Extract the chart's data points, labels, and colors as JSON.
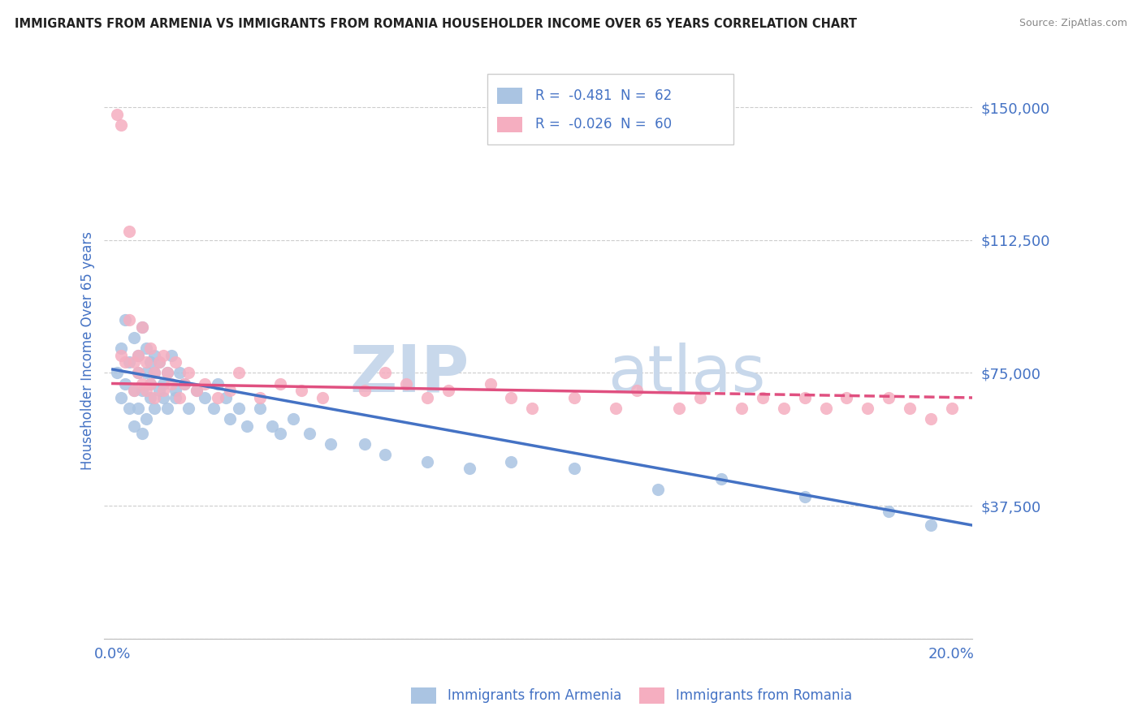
{
  "title": "IMMIGRANTS FROM ARMENIA VS IMMIGRANTS FROM ROMANIA HOUSEHOLDER INCOME OVER 65 YEARS CORRELATION CHART",
  "source": "Source: ZipAtlas.com",
  "ylabel": "Householder Income Over 65 years",
  "ylim": [
    0,
    162500
  ],
  "xlim": [
    -0.002,
    0.205
  ],
  "yticks": [
    0,
    37500,
    75000,
    112500,
    150000
  ],
  "ytick_labels": [
    "",
    "$37,500",
    "$75,000",
    "$112,500",
    "$150,000"
  ],
  "xticks": [
    0.0,
    0.05,
    0.1,
    0.15,
    0.2
  ],
  "xtick_labels": [
    "0.0%",
    "",
    "",
    "",
    "20.0%"
  ],
  "legend_R_armenia": "-0.481",
  "legend_N_armenia": "62",
  "legend_R_romania": "-0.026",
  "legend_N_romania": "60",
  "color_armenia": "#aac4e2",
  "color_romania": "#f5aec0",
  "color_trend_armenia": "#4472c4",
  "color_trend_romania": "#e05080",
  "watermark_zip": "ZIP",
  "watermark_atlas": "atlas",
  "watermark_color": "#c8d8eb",
  "title_color": "#222222",
  "axis_label_color": "#4472c4",
  "legend_text_color": "#4472c4",
  "armenia_x": [
    0.001,
    0.002,
    0.002,
    0.003,
    0.003,
    0.004,
    0.004,
    0.005,
    0.005,
    0.005,
    0.006,
    0.006,
    0.006,
    0.007,
    0.007,
    0.007,
    0.008,
    0.008,
    0.008,
    0.009,
    0.009,
    0.009,
    0.01,
    0.01,
    0.01,
    0.011,
    0.011,
    0.012,
    0.012,
    0.013,
    0.013,
    0.014,
    0.015,
    0.015,
    0.016,
    0.017,
    0.018,
    0.02,
    0.022,
    0.024,
    0.025,
    0.027,
    0.028,
    0.03,
    0.032,
    0.035,
    0.038,
    0.04,
    0.043,
    0.047,
    0.052,
    0.06,
    0.065,
    0.075,
    0.085,
    0.095,
    0.11,
    0.13,
    0.145,
    0.165,
    0.185,
    0.195
  ],
  "armenia_y": [
    75000,
    82000,
    68000,
    90000,
    72000,
    78000,
    65000,
    85000,
    70000,
    60000,
    80000,
    75000,
    65000,
    88000,
    70000,
    58000,
    75000,
    82000,
    62000,
    78000,
    68000,
    72000,
    80000,
    65000,
    75000,
    70000,
    78000,
    68000,
    72000,
    75000,
    65000,
    80000,
    70000,
    68000,
    75000,
    72000,
    65000,
    70000,
    68000,
    65000,
    72000,
    68000,
    62000,
    65000,
    60000,
    65000,
    60000,
    58000,
    62000,
    58000,
    55000,
    55000,
    52000,
    50000,
    48000,
    50000,
    48000,
    42000,
    45000,
    40000,
    36000,
    32000
  ],
  "romania_x": [
    0.001,
    0.002,
    0.002,
    0.003,
    0.004,
    0.004,
    0.005,
    0.005,
    0.006,
    0.006,
    0.007,
    0.007,
    0.008,
    0.008,
    0.009,
    0.009,
    0.01,
    0.01,
    0.011,
    0.012,
    0.012,
    0.013,
    0.014,
    0.015,
    0.016,
    0.017,
    0.018,
    0.02,
    0.022,
    0.025,
    0.028,
    0.03,
    0.035,
    0.04,
    0.045,
    0.05,
    0.06,
    0.065,
    0.07,
    0.075,
    0.08,
    0.09,
    0.095,
    0.1,
    0.11,
    0.12,
    0.125,
    0.135,
    0.14,
    0.15,
    0.155,
    0.16,
    0.165,
    0.17,
    0.175,
    0.18,
    0.185,
    0.19,
    0.195,
    0.2
  ],
  "romania_y": [
    148000,
    145000,
    80000,
    78000,
    115000,
    90000,
    78000,
    70000,
    75000,
    80000,
    88000,
    72000,
    78000,
    70000,
    82000,
    72000,
    75000,
    68000,
    78000,
    80000,
    70000,
    75000,
    72000,
    78000,
    68000,
    72000,
    75000,
    70000,
    72000,
    68000,
    70000,
    75000,
    68000,
    72000,
    70000,
    68000,
    70000,
    75000,
    72000,
    68000,
    70000,
    72000,
    68000,
    65000,
    68000,
    65000,
    70000,
    65000,
    68000,
    65000,
    68000,
    65000,
    68000,
    65000,
    68000,
    65000,
    68000,
    65000,
    62000,
    65000
  ],
  "trend_armenia_y0": 76000,
  "trend_armenia_y1": 32000,
  "trend_romania_y0": 72000,
  "trend_romania_y1": 68000
}
